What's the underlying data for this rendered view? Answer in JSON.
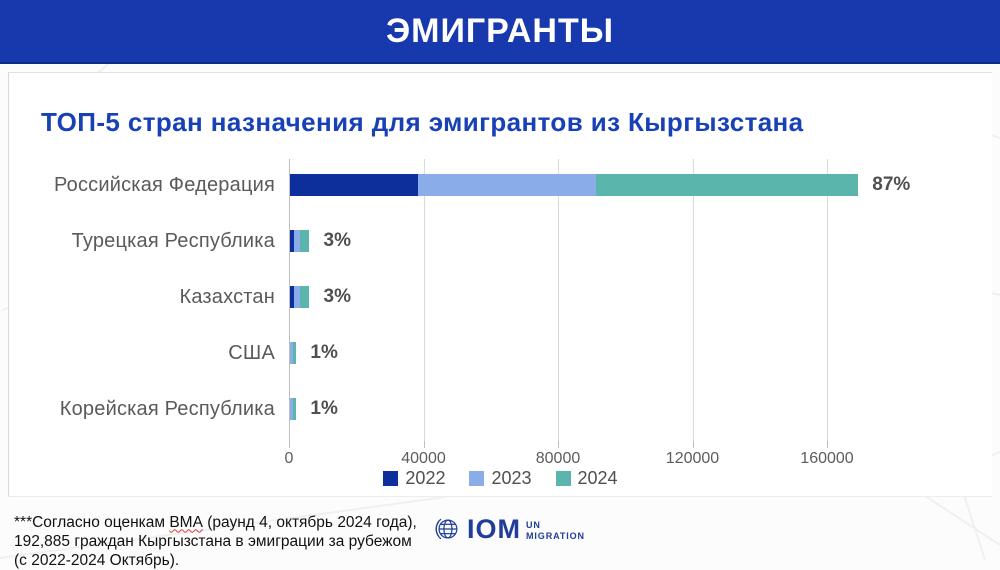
{
  "header": {
    "title": "ЭМИГРАНТЫ"
  },
  "chart_data": {
    "type": "bar",
    "orientation": "horizontal",
    "stacked": true,
    "title": "ТОП-5 стран назначения для эмигрантов из Кыргызстана",
    "categories": [
      "Российская Федерация",
      "Турецкая Республика",
      "Казахстан",
      "США",
      "Корейская Республика"
    ],
    "series": [
      {
        "name": "2022",
        "color": "#0d2f9b",
        "values": [
          38000,
          1300,
          1100,
          0,
          0
        ]
      },
      {
        "name": "2023",
        "color": "#8aace8",
        "values": [
          53000,
          1600,
          1800,
          900,
          800
        ]
      },
      {
        "name": "2024",
        "color": "#5ab5ad",
        "values": [
          78000,
          2900,
          2900,
          1000,
          1100
        ]
      }
    ],
    "total_labels": [
      "87%",
      "3%",
      "3%",
      "1%",
      "1%"
    ],
    "x_ticks": [
      "0",
      "40000",
      "80000",
      "120000",
      "160000"
    ],
    "x_tick_values": [
      0,
      40000,
      80000,
      120000,
      160000
    ],
    "xlim": [
      0,
      175000
    ],
    "grid": true,
    "legend_position": "bottom"
  },
  "footnote": {
    "before": "***Согласно оценкам ",
    "term": "ВМА",
    "after": " (раунд 4, октябрь 2024 года), 192,885 граждан Кыргызстана в эмиграции за рубежом (с 2022-2024 Октябрь)."
  },
  "logo": {
    "org": "IOM",
    "sub1": "UN",
    "sub2": "MIGRATION"
  },
  "colors": {
    "header_bg": "#1838ad",
    "title_text": "#1741b5",
    "bar_2022": "#0d2f9b",
    "bar_2023": "#8aace8",
    "bar_2024": "#5ab5ad",
    "iom_blue": "#1f3d99"
  }
}
